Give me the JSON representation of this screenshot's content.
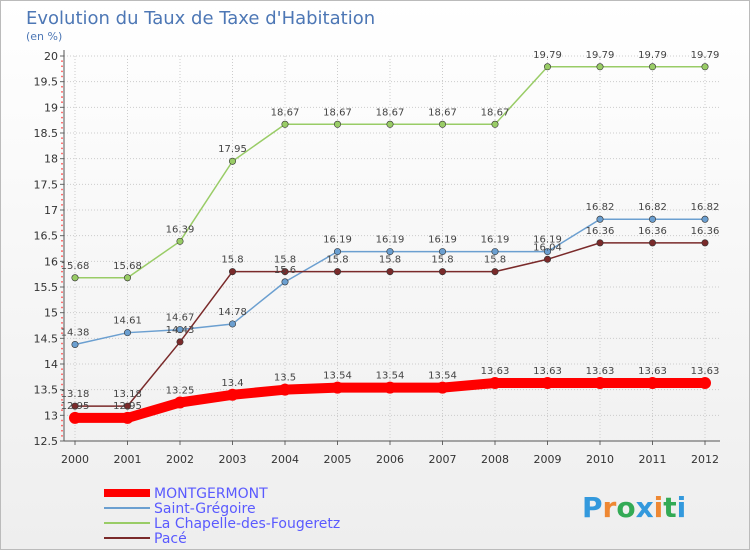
{
  "chart_data": {
    "type": "line",
    "title": "Evolution du Taux de Taxe d'Habitation",
    "subtitle": "(en %)",
    "xlabel": "",
    "ylabel": "",
    "x": [
      "2000",
      "2001",
      "2002",
      "2003",
      "2004",
      "2005",
      "2006",
      "2007",
      "2008",
      "2009",
      "2010",
      "2011",
      "2012"
    ],
    "ylim": [
      12.5,
      20
    ],
    "yticks": [
      "12.5",
      "13",
      "13.5",
      "14",
      "14.5",
      "15",
      "15.5",
      "16",
      "16.5",
      "17",
      "17.5",
      "18",
      "18.5",
      "19",
      "19.5",
      "20"
    ],
    "grid": true,
    "legend_position": "bottom-left",
    "series": [
      {
        "name": "MONTGERMONT",
        "color": "#ff0000",
        "values": [
          12.95,
          12.95,
          13.25,
          13.4,
          13.5,
          13.54,
          13.54,
          13.54,
          13.63,
          13.63,
          13.63,
          13.63,
          13.63
        ],
        "labels": [
          "12.95",
          "12.95",
          "13.25",
          "13.4",
          "13.5",
          "13.54",
          "13.54",
          "13.54",
          "13.63",
          "13.63",
          "13.63",
          "13.63",
          "13.63"
        ]
      },
      {
        "name": "Saint-Grégoire",
        "color": "#6b9fd0",
        "values": [
          14.38,
          14.61,
          14.67,
          14.78,
          15.6,
          16.19,
          16.19,
          16.19,
          16.19,
          16.19,
          16.82,
          16.82,
          16.82
        ],
        "labels": [
          "14.38",
          "14.61",
          "14.67",
          "14.78",
          "15.6",
          "16.19",
          "16.19",
          "16.19",
          "16.19",
          "16.19",
          "16.82",
          "16.82",
          "16.82"
        ]
      },
      {
        "name": "La Chapelle-des-Fougeretz",
        "color": "#99cc66",
        "values": [
          15.68,
          15.68,
          16.39,
          17.95,
          18.67,
          18.67,
          18.67,
          18.67,
          18.67,
          19.79,
          19.79,
          19.79,
          19.79
        ],
        "labels": [
          "15.68",
          "15.68",
          "16.39",
          "17.95",
          "18.67",
          "18.67",
          "18.67",
          "18.67",
          "18.67",
          "19.79",
          "19.79",
          "19.79",
          "19.79"
        ]
      },
      {
        "name": "Pacé",
        "color": "#7a2a2a",
        "values": [
          13.18,
          13.18,
          14.43,
          15.8,
          15.8,
          15.8,
          15.8,
          15.8,
          15.8,
          16.04,
          16.36,
          16.36,
          16.36
        ],
        "labels": [
          "13.18",
          "13.18",
          "14.43",
          "15.8",
          "15.8",
          "15.8",
          "15.8",
          "15.8",
          "15.8",
          "16.04",
          "16.36",
          "16.36",
          "16.36"
        ]
      }
    ]
  },
  "logo": {
    "text": "Proxiti",
    "letters": [
      "P",
      "r",
      "o",
      "x",
      "i",
      "t",
      "i"
    ],
    "colors": [
      "#3399dd",
      "#ee8833",
      "#33aa55",
      "#3399dd",
      "#ee8833",
      "#33aa55",
      "#3399dd"
    ]
  }
}
